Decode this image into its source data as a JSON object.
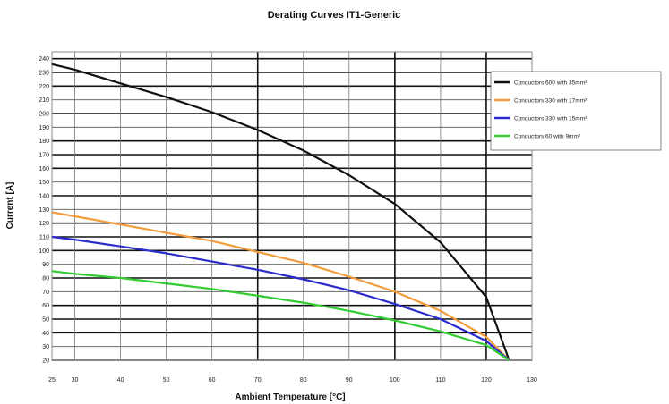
{
  "chart_data": {
    "type": "line",
    "title": "Derating Curves IT1-Generic",
    "xlabel": "Ambient Temperature [°C]",
    "ylabel": "Current [A]",
    "xlim": [
      25,
      130
    ],
    "ylim": [
      20,
      245
    ],
    "x_ticks": [
      25,
      30,
      40,
      50,
      60,
      70,
      80,
      90,
      100,
      110,
      120,
      130
    ],
    "y_ticks": [
      20,
      30,
      40,
      50,
      60,
      70,
      80,
      90,
      100,
      110,
      120,
      130,
      140,
      150,
      160,
      170,
      180,
      190,
      200,
      210,
      220,
      230,
      240
    ],
    "x_tick_labels": [
      "25",
      "30",
      "40",
      "50",
      "60",
      "70",
      "80",
      "90",
      "100",
      "110",
      "120",
      "130"
    ],
    "y_tick_labels": [
      "20",
      "30",
      "40",
      "50",
      "60",
      "70",
      "80",
      "90",
      "100",
      "110",
      "120",
      "130",
      "140",
      "150",
      "160",
      "170",
      "180",
      "190",
      "200",
      "210",
      "220",
      "230",
      "240"
    ],
    "grid": true,
    "legend_position": "top-right",
    "x": [
      25,
      30,
      40,
      50,
      60,
      70,
      80,
      90,
      100,
      110,
      120,
      125
    ],
    "series": [
      {
        "name": "Conductors 600 with 35mm²",
        "color": "#111111",
        "values": [
          236,
          232,
          222,
          212,
          201,
          188,
          173,
          155,
          134,
          106,
          66,
          20
        ]
      },
      {
        "name": "Conductors 330 with 17mm²",
        "color": "#f39c3c",
        "values": [
          128,
          125,
          119,
          113,
          107,
          99,
          91,
          81,
          70,
          56,
          37,
          20
        ]
      },
      {
        "name": "Conductors 330 with 15mm²",
        "color": "#2c2ccc",
        "values": [
          110,
          108,
          103,
          98,
          92,
          86,
          79,
          71,
          61,
          50,
          34,
          20
        ]
      },
      {
        "name": "Conductors 60 with 9mm²",
        "color": "#33cc33",
        "values": [
          85,
          83,
          80,
          76,
          72,
          67,
          62,
          56,
          49,
          41,
          31,
          20
        ]
      }
    ]
  }
}
